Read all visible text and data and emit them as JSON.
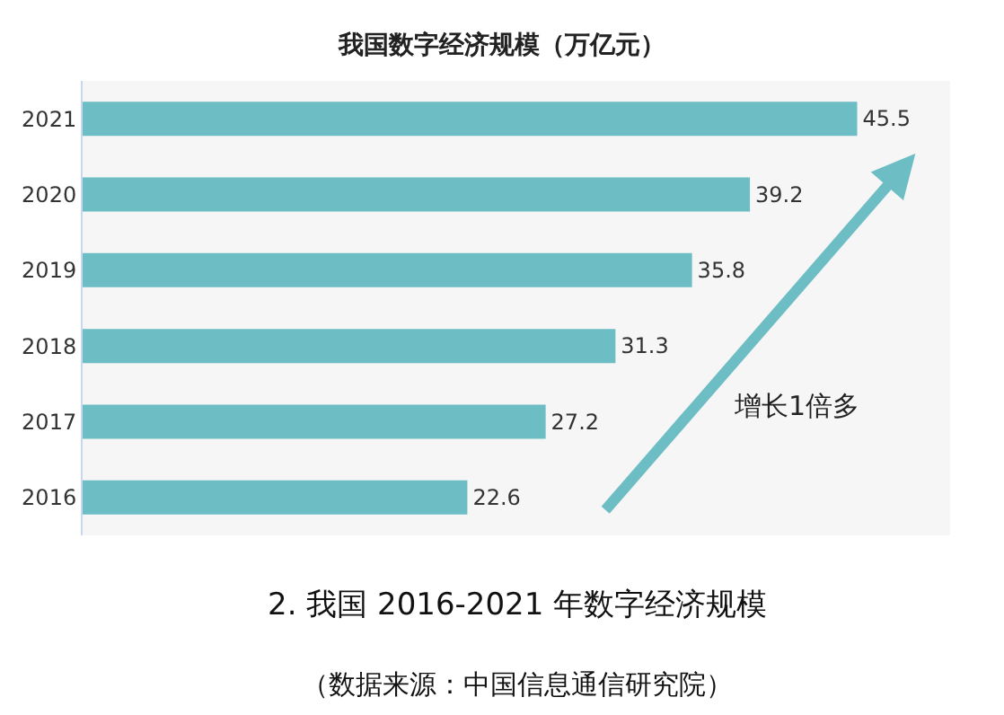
{
  "chart_data": {
    "type": "bar",
    "orientation": "horizontal",
    "title": "我国数字经济规模（万亿元）",
    "categories": [
      "2021",
      "2020",
      "2019",
      "2018",
      "2017",
      "2016"
    ],
    "values": [
      45.5,
      39.2,
      35.8,
      31.3,
      27.2,
      22.6
    ],
    "color": "#6cbdc4",
    "data_labels": true,
    "grid": false,
    "annotations": [
      "增长1倍多",
      "2. 我国 2016-2021 年数字经济规模",
      "（数据来源：中国信息通信研究院）"
    ]
  }
}
